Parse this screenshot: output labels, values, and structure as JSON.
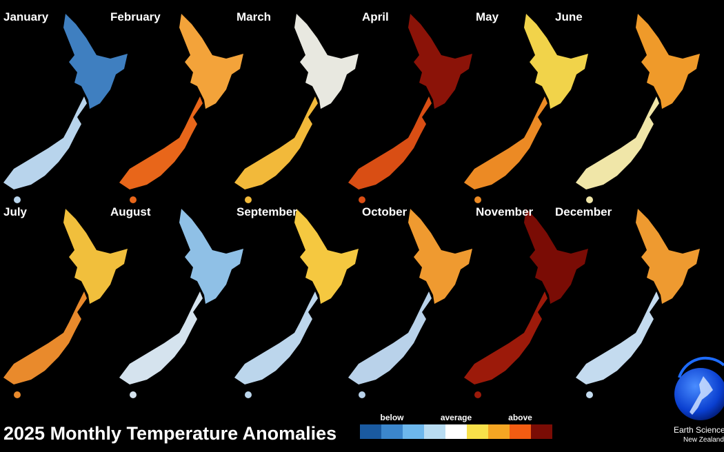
{
  "title": "2025 Monthly Temperature Anomalies",
  "maps": [
    {
      "month": "January",
      "north_color": "#3f7fc0",
      "south_color": "#b8d4ec"
    },
    {
      "month": "February",
      "north_color": "#f3a33a",
      "south_color": "#e8661a"
    },
    {
      "month": "March",
      "north_color": "#e8e8e0",
      "south_color": "#f2b93a"
    },
    {
      "month": "April",
      "north_color": "#8b1308",
      "south_color": "#d94e14"
    },
    {
      "month": "May",
      "north_color": "#f1d34a",
      "south_color": "#ec8a24"
    },
    {
      "month": "June",
      "north_color": "#ef9a2a",
      "south_color": "#f0e6a8"
    },
    {
      "month": "July",
      "north_color": "#f1bf3c",
      "south_color": "#e98a2c"
    },
    {
      "month": "August",
      "north_color": "#8fc0e6",
      "south_color": "#d5e3ee"
    },
    {
      "month": "September",
      "north_color": "#f5c840",
      "south_color": "#bcd6ec"
    },
    {
      "month": "October",
      "north_color": "#ef9a30",
      "south_color": "#b9d2ea"
    },
    {
      "month": "November",
      "north_color": "#7a0c05",
      "south_color": "#9c1a0a"
    },
    {
      "month": "December",
      "north_color": "#ee9a30",
      "south_color": "#c4dbef"
    }
  ],
  "legend": {
    "labels": [
      "below",
      "average",
      "above"
    ],
    "colors": [
      "#1a5aa0",
      "#3b86cc",
      "#6db7ec",
      "#b8dcf2",
      "#ffffff",
      "#f7e04a",
      "#f5a623",
      "#f25c12",
      "#7a0c05"
    ]
  },
  "logo": {
    "line1": "Earth Sciences",
    "line2": "New Zealand"
  }
}
